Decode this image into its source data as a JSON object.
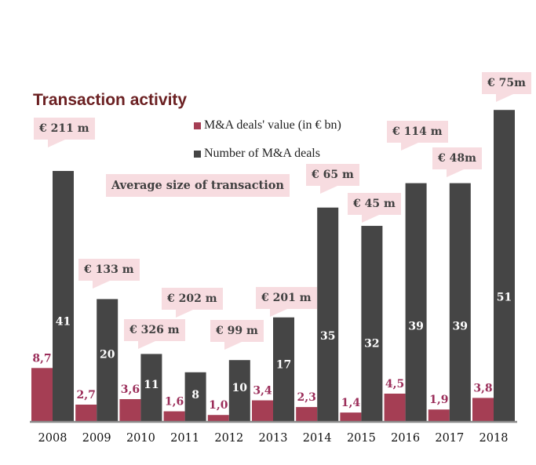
{
  "chart_data": {
    "type": "bar",
    "title": "Transaction activity",
    "categories": [
      "2008",
      "2009",
      "2010",
      "2011",
      "2012",
      "2013",
      "2014",
      "2015",
      "2016",
      "2017",
      "2018"
    ],
    "series": [
      {
        "name": "M&A deals' value (in € bn)",
        "color": "#a53e54",
        "label_color": "#9b2e5a",
        "values": [
          8.7,
          2.7,
          3.6,
          1.6,
          1.0,
          3.4,
          2.3,
          1.4,
          4.5,
          1.9,
          3.8
        ],
        "labels": [
          "8,7",
          "2,7",
          "3,6",
          "1,6",
          "1,0",
          "3,4",
          "2,3",
          "1,4",
          "4,5",
          "1,9",
          "3,8"
        ]
      },
      {
        "name": "Number of M&A deals",
        "color": "#454545",
        "label_color": "#ffffff",
        "values": [
          41,
          20,
          11,
          8,
          10,
          17,
          35,
          32,
          39,
          39,
          51
        ],
        "labels": [
          "41",
          "20",
          "11",
          "8",
          "10",
          "17",
          "35",
          "32",
          "39",
          "39",
          "51"
        ]
      }
    ],
    "annotations": {
      "heading": "Average size of transaction",
      "callouts": [
        "€ 211 m",
        "€ 133 m",
        "€ 326 m",
        "€ 202 m",
        "€ 99 m",
        "€ 201 m",
        "€ 65 m",
        "€ 45 m",
        "€ 114 m",
        "€ 48m",
        "€ 75m"
      ]
    },
    "xlabel": "",
    "ylabel": "",
    "ylim": [
      0,
      52
    ],
    "grid": false,
    "legend": "top-center"
  }
}
